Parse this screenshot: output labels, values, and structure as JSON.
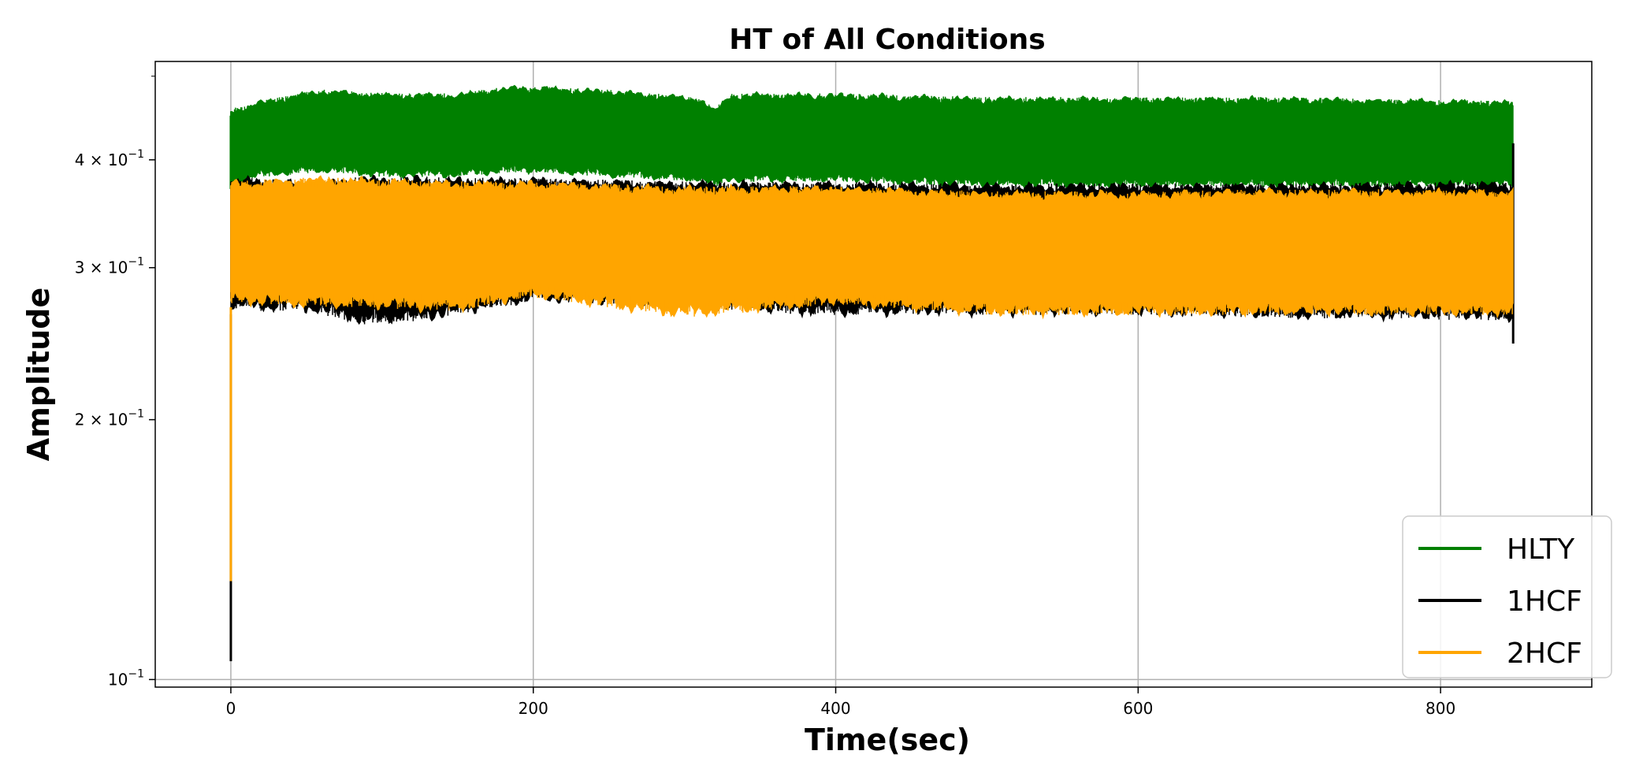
{
  "chart_data": {
    "type": "line",
    "title": "HT of All Conditions",
    "xlabel": "Time(sec)",
    "ylabel": "Amplitude",
    "xlim": [
      -50,
      900
    ],
    "ylim": [
      0.098,
      0.52
    ],
    "yscale": "log",
    "grid": true,
    "legend_position": "lower right",
    "x_ticks": [
      {
        "value": 0,
        "label": "0"
      },
      {
        "value": 200,
        "label": "200"
      },
      {
        "value": 400,
        "label": "400"
      },
      {
        "value": 600,
        "label": "600"
      },
      {
        "value": 800,
        "label": "800"
      }
    ],
    "y_ticks": [
      {
        "value": 0.1,
        "base": "10",
        "exp": "−1",
        "mantissa": ""
      },
      {
        "value": 0.2,
        "base": "10",
        "exp": "−1",
        "mantissa": "2 × "
      },
      {
        "value": 0.3,
        "base": "10",
        "exp": "−1",
        "mantissa": "3 × "
      },
      {
        "value": 0.4,
        "base": "10",
        "exp": "−1",
        "mantissa": "4 × "
      }
    ],
    "series": [
      {
        "name": "HLTY",
        "color": "#008000",
        "x_range": [
          0,
          848
        ],
        "start_value": 0.45,
        "band": [
          {
            "x": 0,
            "low": 0.37,
            "high": 0.46
          },
          {
            "x": 20,
            "low": 0.38,
            "high": 0.47
          },
          {
            "x": 60,
            "low": 0.385,
            "high": 0.485
          },
          {
            "x": 100,
            "low": 0.38,
            "high": 0.48
          },
          {
            "x": 150,
            "low": 0.38,
            "high": 0.48
          },
          {
            "x": 190,
            "low": 0.385,
            "high": 0.49
          },
          {
            "x": 250,
            "low": 0.38,
            "high": 0.485
          },
          {
            "x": 310,
            "low": 0.375,
            "high": 0.475
          },
          {
            "x": 320,
            "low": 0.37,
            "high": 0.46
          },
          {
            "x": 330,
            "low": 0.375,
            "high": 0.48
          },
          {
            "x": 400,
            "low": 0.375,
            "high": 0.48
          },
          {
            "x": 500,
            "low": 0.37,
            "high": 0.475
          },
          {
            "x": 600,
            "low": 0.37,
            "high": 0.475
          },
          {
            "x": 700,
            "low": 0.37,
            "high": 0.475
          },
          {
            "x": 848,
            "low": 0.37,
            "high": 0.47
          }
        ]
      },
      {
        "name": "1HCF",
        "color": "#000000",
        "x_range": [
          0,
          848
        ],
        "start_value": 0.105,
        "end_value": 0.245,
        "band": [
          {
            "x": 0,
            "low": 0.265,
            "high": 0.385
          },
          {
            "x": 50,
            "low": 0.265,
            "high": 0.38
          },
          {
            "x": 88,
            "low": 0.255,
            "high": 0.385
          },
          {
            "x": 130,
            "low": 0.258,
            "high": 0.385
          },
          {
            "x": 200,
            "low": 0.272,
            "high": 0.383
          },
          {
            "x": 300,
            "low": 0.268,
            "high": 0.38
          },
          {
            "x": 380,
            "low": 0.262,
            "high": 0.38
          },
          {
            "x": 500,
            "low": 0.262,
            "high": 0.378
          },
          {
            "x": 600,
            "low": 0.262,
            "high": 0.378
          },
          {
            "x": 700,
            "low": 0.26,
            "high": 0.378
          },
          {
            "x": 848,
            "low": 0.258,
            "high": 0.38
          }
        ]
      },
      {
        "name": "2HCF",
        "color": "#FFA500",
        "x_range": [
          0,
          848
        ],
        "start_value": 0.13,
        "band": [
          {
            "x": 0,
            "low": 0.27,
            "high": 0.38
          },
          {
            "x": 60,
            "low": 0.268,
            "high": 0.385
          },
          {
            "x": 150,
            "low": 0.265,
            "high": 0.38
          },
          {
            "x": 200,
            "low": 0.275,
            "high": 0.38
          },
          {
            "x": 300,
            "low": 0.26,
            "high": 0.375
          },
          {
            "x": 400,
            "low": 0.27,
            "high": 0.375
          },
          {
            "x": 500,
            "low": 0.262,
            "high": 0.37
          },
          {
            "x": 600,
            "low": 0.262,
            "high": 0.37
          },
          {
            "x": 700,
            "low": 0.262,
            "high": 0.372
          },
          {
            "x": 848,
            "low": 0.262,
            "high": 0.372
          }
        ]
      }
    ]
  }
}
